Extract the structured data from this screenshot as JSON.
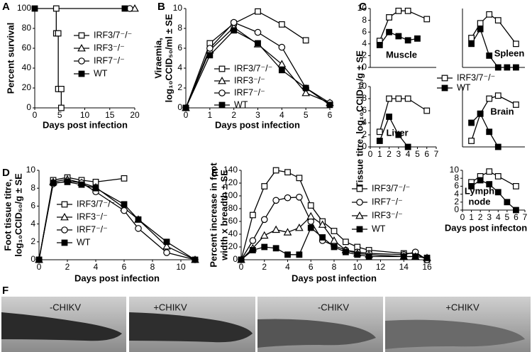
{
  "chart_data": [
    {
      "type": "line",
      "label": "A",
      "ylabel": [
        "Percent survival"
      ],
      "xlabel": "Days post infection",
      "xlim": [
        0,
        20
      ],
      "xticks": [
        0,
        5,
        10,
        15,
        20
      ],
      "ylim": [
        0,
        100
      ],
      "yticks": [
        0,
        20,
        40,
        60,
        80,
        100
      ],
      "series": [
        {
          "name": "IRF3/7⁻/⁻",
          "marker": "open-square",
          "color": "#000",
          "x": [
            4.3,
            4.3,
            4.7,
            4.7,
            5.3,
            5.3
          ],
          "values": [
            100,
            75,
            75,
            19,
            19,
            0
          ]
        },
        {
          "name": "IRF3⁻/⁻",
          "marker": "open-triangle",
          "color": "#000",
          "x": [
            20
          ],
          "values": [
            100
          ]
        },
        {
          "name": "IRF7⁻/⁻",
          "marker": "open-circle",
          "color": "#000",
          "x": [
            19
          ],
          "values": [
            100
          ]
        },
        {
          "name": "WT",
          "marker": "filled-square",
          "color": "#000",
          "x": [
            0,
            18
          ],
          "values": [
            100,
            100
          ]
        }
      ]
    },
    {
      "type": "line",
      "label": "B",
      "ylabel": [
        "Viraemia,",
        "log₁₀CCID₅₀/ml ± SE"
      ],
      "xlabel": "Days post infection",
      "xlim": [
        0,
        6
      ],
      "xticks": [
        0,
        1,
        2,
        3,
        4,
        5,
        6
      ],
      "ylim": [
        0,
        10
      ],
      "yticks": [
        0,
        2,
        4,
        6,
        8,
        10
      ],
      "series": [
        {
          "name": "IRF3/7⁻/⁻",
          "marker": "open-square",
          "color": "#000",
          "x": [
            0,
            1,
            2,
            3,
            4,
            5
          ],
          "values": [
            0,
            6.5,
            8.5,
            9.7,
            8.4,
            6.8
          ]
        },
        {
          "name": "IRF3⁻/⁻",
          "marker": "open-triangle",
          "color": "#000",
          "x": [
            0,
            1,
            2,
            3,
            4,
            5,
            6
          ],
          "values": [
            0,
            5.8,
            8.1,
            6.4,
            4.4,
            1.5,
            0.5
          ]
        },
        {
          "name": "IRF7⁻/⁻",
          "marker": "open-circle",
          "color": "#000",
          "x": [
            0,
            1,
            2,
            3,
            4,
            5,
            6
          ],
          "values": [
            0,
            6,
            8.6,
            7.6,
            6.1,
            2,
            0.5
          ]
        },
        {
          "name": "WT",
          "marker": "filled-square",
          "color": "#000",
          "x": [
            0,
            1,
            2,
            3,
            4,
            5,
            6
          ],
          "values": [
            0,
            5.3,
            7.8,
            6.5,
            3.8,
            2,
            0.3
          ]
        }
      ]
    },
    {
      "type": "multiples",
      "label": "C",
      "ylabel": [
        "Tissue titre, log₁₀CCID₅₀/g ± SE"
      ],
      "xlabel": "Days post infecton",
      "legend": [
        {
          "name": "IRF3/7⁻/⁻",
          "marker": "open-square"
        },
        {
          "name": "WT",
          "marker": "filled-square"
        }
      ],
      "panels": [
        {
          "title": [
            "Muscle"
          ],
          "xlim": [
            0,
            7
          ],
          "ylim": [
            0,
            10
          ],
          "yticks": [
            0,
            2,
            4,
            6,
            8,
            10
          ],
          "series": [
            {
              "marker": "open-square",
              "color": "#000",
              "x": [
                1,
                2,
                3,
                4,
                6
              ],
              "values": [
                4.5,
                8.5,
                9.6,
                9.6,
                8.2
              ]
            },
            {
              "marker": "filled-square",
              "color": "#000",
              "x": [
                1,
                2,
                3,
                4,
                5
              ],
              "values": [
                3.8,
                6,
                5.3,
                4.6,
                4.9
              ]
            }
          ]
        },
        {
          "title": [
            "Spleen"
          ],
          "xlim": [
            0,
            7
          ],
          "ylim": [
            0,
            10
          ],
          "series": [
            {
              "marker": "open-square",
              "color": "#000",
              "x": [
                1,
                2,
                3,
                4,
                6
              ],
              "values": [
                5,
                7.5,
                9,
                8,
                4
              ]
            },
            {
              "marker": "filled-square",
              "color": "#000",
              "x": [
                1,
                2,
                3,
                4,
                5,
                6
              ],
              "values": [
                4,
                6.5,
                2,
                0,
                0,
                0
              ]
            }
          ]
        },
        {
          "title": [
            "Liver"
          ],
          "xlim": [
            0,
            7
          ],
          "ylim": [
            0,
            10
          ],
          "yticks": [
            0,
            2,
            4,
            6,
            8,
            10
          ],
          "xticks": [
            0,
            1,
            2,
            3,
            4,
            5,
            6,
            7
          ],
          "series": [
            {
              "marker": "open-square",
              "color": "#000",
              "x": [
                1,
                2,
                3,
                4,
                6
              ],
              "values": [
                2.5,
                8,
                8,
                8,
                6
              ]
            },
            {
              "marker": "filled-square",
              "color": "#000",
              "x": [
                1,
                2,
                3,
                4
              ],
              "values": [
                1,
                5,
                2,
                0
              ]
            }
          ]
        },
        {
          "title": [
            "Brain"
          ],
          "xlim": [
            0,
            7
          ],
          "ylim": [
            0,
            10
          ],
          "series": [
            {
              "marker": "open-square",
              "color": "#000",
              "x": [
                1,
                2,
                3,
                4,
                6
              ],
              "values": [
                1,
                5.5,
                8,
                8.5,
                7
              ]
            },
            {
              "marker": "filled-square",
              "color": "#000",
              "x": [
                1,
                2,
                3,
                4
              ],
              "values": [
                4,
                5.5,
                2.5,
                0
              ]
            }
          ]
        },
        {
          "title": [
            "Lymph",
            "node"
          ],
          "xlim": [
            0,
            7
          ],
          "ylim": [
            0,
            10
          ],
          "yticks": [
            0,
            2,
            4,
            6,
            8,
            10
          ],
          "xticks": [
            0,
            1,
            2,
            3,
            4,
            5,
            6,
            7
          ],
          "series": [
            {
              "marker": "open-square",
              "color": "#000",
              "x": [
                1,
                2,
                3,
                4,
                6
              ],
              "values": [
                7,
                8.5,
                9.7,
                8.5,
                6
              ]
            },
            {
              "marker": "filled-square",
              "color": "#000",
              "x": [
                1,
                2,
                3,
                4,
                5,
                6
              ],
              "values": [
                6,
                7.5,
                6.5,
                4.5,
                2,
                0
              ]
            }
          ]
        }
      ]
    },
    {
      "type": "line",
      "label": "D",
      "ylabel": [
        "Foot tissue titre,",
        "log₁₀CCID₅₀/g ± SE"
      ],
      "xlabel": "Days post infection",
      "xlim": [
        0,
        11
      ],
      "xticks": [
        0,
        2,
        4,
        6,
        8,
        10
      ],
      "ylim": [
        0,
        10
      ],
      "yticks": [
        0,
        2,
        4,
        6,
        8,
        10
      ],
      "series": [
        {
          "name": "IRF3/7⁻/⁻",
          "marker": "open-square",
          "color": "#000",
          "x": [
            0,
            1,
            2,
            3,
            4,
            6
          ],
          "values": [
            0,
            8.9,
            9.2,
            8.9,
            8.7,
            9.1
          ]
        },
        {
          "name": "IRF3⁻/⁻",
          "marker": "open-triangle",
          "color": "#000",
          "x": [
            0,
            1,
            2,
            3,
            4,
            6,
            7,
            9,
            11
          ],
          "values": [
            0,
            8.7,
            9,
            8.6,
            8.1,
            5.8,
            4.5,
            1.5,
            0
          ]
        },
        {
          "name": "IRF7⁻/⁻",
          "marker": "open-circle",
          "color": "#000",
          "x": [
            0,
            1,
            2,
            3,
            4,
            6,
            7,
            9,
            11
          ],
          "values": [
            0,
            8.5,
            8.8,
            8.6,
            7.6,
            5.5,
            3.5,
            0.8,
            0
          ]
        },
        {
          "name": "WT",
          "marker": "filled-square",
          "color": "#000",
          "x": [
            0,
            1,
            2,
            3,
            4,
            6,
            7,
            9,
            11
          ],
          "values": [
            0,
            8.6,
            8.7,
            8.4,
            8,
            6.2,
            4.5,
            2,
            0
          ]
        }
      ]
    },
    {
      "type": "line",
      "label": "E",
      "ylabel": [
        "Percent increase in foot",
        "width x breadth ± SE"
      ],
      "xlabel": "Days post infection",
      "xlim": [
        0,
        16
      ],
      "xticks": [
        0,
        2,
        4,
        6,
        8,
        10,
        12,
        14,
        16
      ],
      "ylim": [
        0,
        140
      ],
      "yticks": [
        0,
        20,
        40,
        60,
        80,
        100,
        120,
        140
      ],
      "series": [
        {
          "name": "IRF3/7⁻/⁻",
          "marker": "open-square",
          "color": "#000",
          "x": [
            0,
            1,
            2,
            3,
            4,
            5,
            6,
            7,
            8,
            9,
            10,
            11,
            14,
            15,
            16
          ],
          "values": [
            0,
            70,
            115,
            140,
            137,
            128,
            85,
            60,
            45,
            28,
            20,
            15,
            10,
            10,
            0
          ]
        },
        {
          "name": "IRF7⁻/⁻",
          "marker": "open-circle",
          "color": "#000",
          "x": [
            0,
            1,
            2,
            3,
            4,
            5,
            6,
            7,
            8,
            9,
            10,
            11,
            14,
            15,
            16
          ],
          "values": [
            0,
            30,
            63,
            93,
            97,
            98,
            60,
            30,
            22,
            15,
            12,
            10,
            8,
            12,
            0
          ]
        },
        {
          "name": "IRF3⁻/⁻",
          "marker": "open-triangle",
          "color": "#000",
          "x": [
            0,
            1,
            2,
            3,
            4,
            5,
            6,
            7,
            8,
            9,
            10,
            11,
            14,
            15,
            16
          ],
          "values": [
            0,
            18,
            38,
            47,
            43,
            50,
            68,
            55,
            30,
            15,
            10,
            8,
            5,
            5,
            3
          ]
        },
        {
          "name": "WT",
          "marker": "filled-square",
          "color": "#000",
          "x": [
            0,
            1,
            2,
            3,
            4,
            5,
            6,
            7,
            8,
            9,
            10,
            11,
            14,
            15,
            16
          ],
          "values": [
            0,
            15,
            20,
            18,
            8,
            8,
            50,
            35,
            20,
            12,
            8,
            5,
            5,
            5,
            3
          ]
        }
      ]
    }
  ],
  "panel_f": {
    "label": "F",
    "images": [
      {
        "caption": "-CHIKV"
      },
      {
        "caption": "+CHIKV"
      },
      {
        "caption": "-CHIKV"
      },
      {
        "caption": "+CHIKV"
      }
    ]
  }
}
